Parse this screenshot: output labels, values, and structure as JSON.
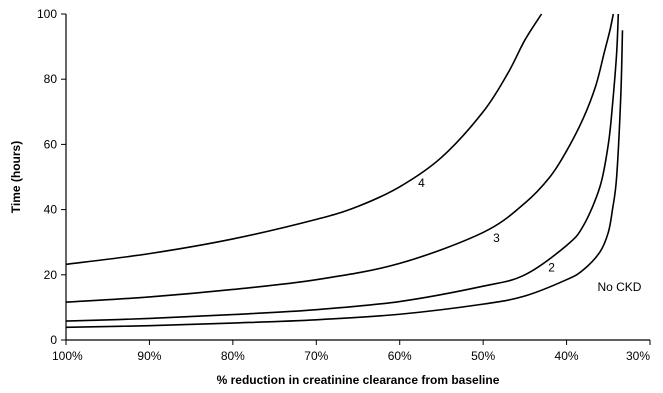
{
  "chart_data": {
    "type": "line",
    "title": "",
    "xlabel": "% reduction in creatinine clearance from baseline",
    "ylabel": "Time (hours)",
    "xlim": [
      100,
      30
    ],
    "ylim": [
      0,
      100
    ],
    "x_ticks": [
      100,
      90,
      80,
      70,
      60,
      50,
      40,
      30
    ],
    "x_tick_labels": [
      "100%",
      "90%",
      "80%",
      "70%",
      "60%",
      "50%",
      "40%",
      "30%"
    ],
    "y_ticks": [
      0,
      20,
      40,
      60,
      80,
      100
    ],
    "y_tick_labels": [
      "0",
      "20",
      "40",
      "60",
      "80",
      "100"
    ],
    "grid": false,
    "legend": "none",
    "series": [
      {
        "name": "4",
        "x": [
          100,
          90,
          80,
          70,
          65,
          60,
          55,
          50,
          47,
          45,
          43
        ],
        "y": [
          23.2,
          26.5,
          31,
          37,
          41,
          47,
          56,
          70,
          82,
          92,
          100
        ]
      },
      {
        "name": "3",
        "x": [
          100,
          90,
          80,
          70,
          60,
          50,
          45,
          42,
          40,
          38,
          36.5,
          35.5,
          34.8,
          34.4
        ],
        "y": [
          11.6,
          13.2,
          15.5,
          18.5,
          23.5,
          33,
          42,
          50,
          58,
          68,
          78,
          88,
          95,
          100
        ]
      },
      {
        "name": "2",
        "x": [
          100,
          90,
          80,
          70,
          60,
          50,
          45,
          40,
          38,
          36,
          35,
          34.5,
          34,
          33.8
        ],
        "y": [
          5.8,
          6.6,
          7.8,
          9.3,
          11.8,
          16.5,
          20,
          29,
          35,
          47,
          60,
          72,
          88,
          100
        ]
      },
      {
        "name": "No CKD",
        "x": [
          100,
          90,
          80,
          70,
          60,
          50,
          45,
          40,
          38,
          36,
          35,
          34.5,
          34,
          33.5,
          33.3
        ],
        "y": [
          3.9,
          4.4,
          5.2,
          6.2,
          7.9,
          11,
          13.5,
          18.5,
          21.5,
          27,
          33,
          40,
          50,
          75,
          95
        ]
      }
    ],
    "annotations": [
      {
        "text": "4",
        "x": 57.8,
        "y": 47
      },
      {
        "text": "3",
        "x": 48.8,
        "y": 30
      },
      {
        "text": "2",
        "x": 42.2,
        "y": 21
      },
      {
        "text": "No CKD",
        "x": 36.3,
        "y": 15
      }
    ]
  }
}
